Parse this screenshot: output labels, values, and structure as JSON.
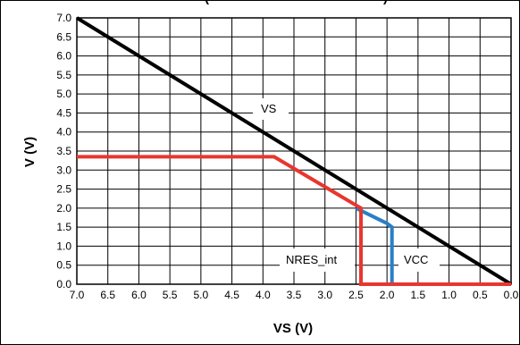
{
  "chart_data": {
    "type": "line",
    "title_partial": "(",
    "title_partial_right": ")",
    "xlabel": "VS (V)",
    "ylabel": "V (V)",
    "x_reversed": true,
    "xlim": [
      7.0,
      0.0
    ],
    "ylim": [
      0.0,
      7.0
    ],
    "grid": true,
    "x_ticks": [
      "7.0",
      "6.5",
      "6.0",
      "5.5",
      "5.0",
      "4.5",
      "4.0",
      "3.5",
      "3.0",
      "2.5",
      "2.0",
      "1.5",
      "1.0",
      "0.5",
      "0.0"
    ],
    "y_ticks": [
      "7.0",
      "6.5",
      "6.0",
      "5.5",
      "5.0",
      "4.5",
      "4.0",
      "3.5",
      "3.0",
      "2.5",
      "2.0",
      "1.5",
      "1.0",
      "0.5",
      "0.0"
    ],
    "series": [
      {
        "name": "VS",
        "color": "#000000",
        "x": [
          7.0,
          0.0
        ],
        "y": [
          7.0,
          0.0
        ]
      },
      {
        "name": "VCC",
        "color": "#2a7fc6",
        "x": [
          2.5,
          2.0,
          1.92,
          1.92,
          0.0
        ],
        "y": [
          2.0,
          1.6,
          1.5,
          0.0,
          0.0
        ]
      },
      {
        "name": "NRES_int",
        "color": "#e8362f",
        "x": [
          7.0,
          3.82,
          2.42,
          2.42,
          0.0
        ],
        "y": [
          3.35,
          3.35,
          2.0,
          0.0,
          0.0
        ]
      }
    ],
    "annotations": [
      "VS",
      "NRES_int",
      "VCC"
    ]
  }
}
